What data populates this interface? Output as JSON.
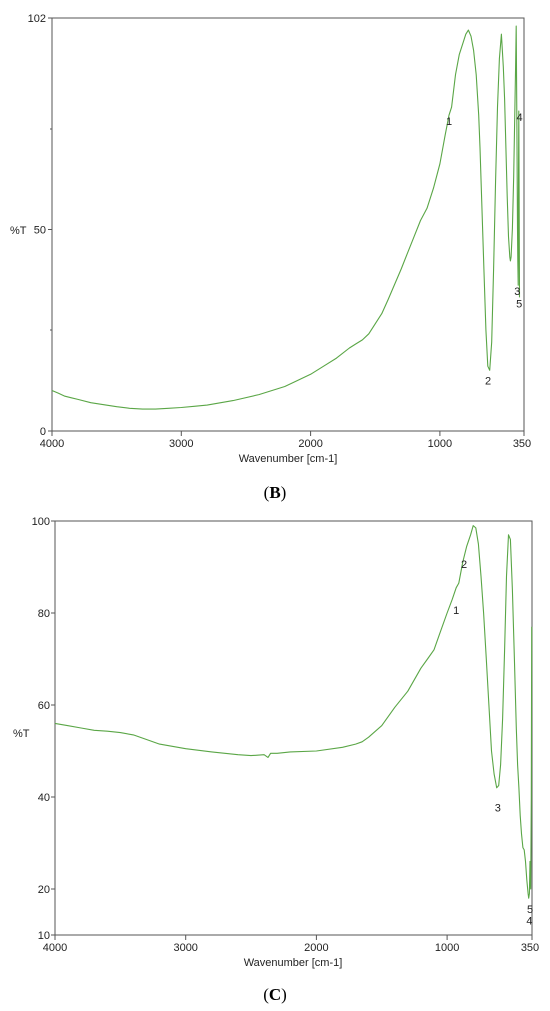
{
  "chart_data": [
    {
      "type": "line",
      "panel_label": "B",
      "xlabel": "Wavenumber [cm-1]",
      "ylabel": "%T",
      "xlim": [
        4000,
        350
      ],
      "ylim": [
        0,
        102
      ],
      "x_reversed": true,
      "x_ticks": [
        4000,
        3000,
        2000,
        1000,
        350
      ],
      "y_ticks": [
        0,
        50,
        102
      ],
      "line_color": "#5aa646",
      "series": [
        {
          "x": [
            4000,
            3950,
            3900,
            3850,
            3800,
            3700,
            3600,
            3500,
            3400,
            3300,
            3200,
            3100,
            3000,
            2900,
            2800,
            2600,
            2400,
            2200,
            2000,
            1900,
            1800,
            1700,
            1650,
            1600,
            1550,
            1500,
            1450,
            1400,
            1300,
            1250,
            1200,
            1150,
            1100,
            1050,
            1000,
            960,
            930,
            910,
            880,
            850,
            820,
            800,
            780,
            760,
            740,
            720,
            700,
            690,
            680,
            670,
            660,
            645,
            630,
            615,
            600,
            585,
            570,
            555,
            540,
            525,
            510,
            500,
            490,
            480,
            470,
            460,
            455,
            450,
            440,
            430,
            420,
            415,
            410,
            405,
            400,
            398,
            395,
            393,
            390,
            388,
            385
          ],
          "y": [
            10,
            9.3,
            8.6,
            8.2,
            7.8,
            7.0,
            6.5,
            6.0,
            5.6,
            5.4,
            5.4,
            5.6,
            5.8,
            6.1,
            6.4,
            7.5,
            9.0,
            11.0,
            14.0,
            16.0,
            18.0,
            20.5,
            21.5,
            22.5,
            24.0,
            26.5,
            29.0,
            32.5,
            40.0,
            44.0,
            48.0,
            52.0,
            55.0,
            60.0,
            66.0,
            73.0,
            78.0,
            80.0,
            88.0,
            93.0,
            96.0,
            98.0,
            99.0,
            97.5,
            94.0,
            88.0,
            78.0,
            70.0,
            60.0,
            50.0,
            40.0,
            25.0,
            16.0,
            15.0,
            22.0,
            40.0,
            62.0,
            80.0,
            92.0,
            98.0,
            90.0,
            82.0,
            70.0,
            58.0,
            48.0,
            43.0,
            42.0,
            43.0,
            50.0,
            63.0,
            80.0,
            90.0,
            100.0,
            75.0,
            50.0,
            42.0,
            36.0,
            55.0,
            79.0,
            60.0,
            33.0
          ]
        }
      ],
      "annotations": [
        {
          "text": "1",
          "x": 930,
          "y": 78
        },
        {
          "text": "2",
          "x": 628,
          "y": 14
        },
        {
          "text": "3",
          "x": 402,
          "y": 36
        },
        {
          "text": "4",
          "x": 385,
          "y": 79
        },
        {
          "text": "5",
          "x": 387,
          "y": 33
        }
      ]
    },
    {
      "type": "line",
      "panel_label": "C",
      "xlabel": "Wavenumber [cm-1]",
      "ylabel": "%T",
      "xlim": [
        4000,
        350
      ],
      "ylim": [
        10,
        100
      ],
      "x_reversed": true,
      "x_ticks": [
        4000,
        3000,
        2000,
        1000,
        350
      ],
      "y_ticks": [
        10,
        20,
        40,
        60,
        80,
        100
      ],
      "line_color": "#5aa646",
      "series": [
        {
          "x": [
            4000,
            3900,
            3800,
            3700,
            3600,
            3500,
            3400,
            3300,
            3200,
            3000,
            2800,
            2600,
            2500,
            2400,
            2370,
            2350,
            2300,
            2200,
            2000,
            1800,
            1700,
            1650,
            1600,
            1500,
            1400,
            1300,
            1200,
            1150,
            1100,
            1050,
            1000,
            960,
            930,
            910,
            880,
            850,
            820,
            800,
            780,
            760,
            740,
            720,
            700,
            680,
            660,
            640,
            620,
            605,
            590,
            575,
            560,
            545,
            530,
            515,
            500,
            485,
            470,
            460,
            450,
            440,
            430,
            420,
            410,
            400,
            390,
            380,
            375,
            370,
            365,
            360,
            355,
            352
          ],
          "y": [
            56,
            55.5,
            55,
            54.5,
            54.3,
            54,
            53.5,
            52.5,
            51.5,
            50.5,
            49.8,
            49.2,
            49.0,
            49.2,
            48.6,
            49.5,
            49.5,
            49.8,
            50.0,
            50.8,
            51.5,
            52.0,
            53.0,
            55.5,
            59.5,
            63.0,
            68.0,
            70.0,
            72.0,
            76.0,
            80.0,
            83.0,
            85.5,
            86.5,
            91.0,
            94.5,
            97.0,
            99.0,
            98.5,
            95.0,
            88.0,
            80.0,
            70.0,
            60.0,
            50.0,
            45.0,
            42.0,
            42.5,
            47.0,
            57.0,
            72.0,
            88.0,
            97.0,
            96.0,
            85.0,
            70.0,
            55.0,
            47.0,
            42.0,
            36.0,
            32.0,
            29.0,
            28.5,
            26.0,
            22.0,
            19.0,
            18.0,
            19.0,
            26.0,
            20.0,
            40.0,
            77.0
          ]
        }
      ],
      "annotations": [
        {
          "text": "1",
          "x": 930,
          "y": 82
        },
        {
          "text": "2",
          "x": 870,
          "y": 92
        },
        {
          "text": "3",
          "x": 612,
          "y": 39
        },
        {
          "text": "4",
          "x": 370,
          "y": 14.5
        },
        {
          "text": "5",
          "x": 365,
          "y": 17
        }
      ]
    }
  ]
}
